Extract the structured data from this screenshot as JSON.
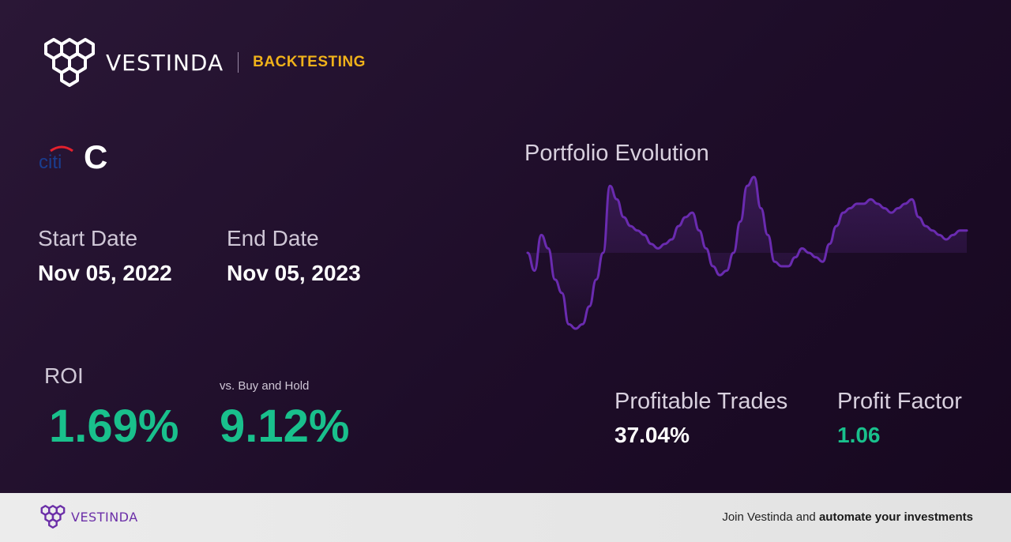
{
  "brand": {
    "name": "VESTINDA",
    "tag": "BACKTESTING",
    "tag_color": "#f0b21a"
  },
  "ticker": {
    "logo": "citi-logo",
    "logo_text": "citi",
    "symbol": "C"
  },
  "dates": {
    "start_label": "Start Date",
    "start_value": "Nov 05, 2022",
    "end_label": "End Date",
    "end_value": "Nov 05, 2023"
  },
  "roi": {
    "label": "ROI",
    "value": "1.69%",
    "bh_label": "vs. Buy and Hold",
    "bh_value": "9.12%",
    "color": "#19c08c"
  },
  "chart_data": {
    "type": "line",
    "title": "Portfolio Evolution",
    "xlabel": "",
    "ylabel": "",
    "grid": false,
    "axes_visible": false,
    "series_color": "#6a2bb0",
    "values": [
      60,
      56,
      64,
      61,
      54,
      51,
      44,
      43,
      44,
      48,
      54,
      60,
      75,
      72,
      68,
      66,
      65,
      64,
      62,
      61,
      62,
      63,
      66,
      68,
      69,
      65,
      61,
      57,
      55,
      56,
      60,
      67,
      75,
      77,
      70,
      64,
      58,
      57,
      57,
      59,
      61,
      60,
      59,
      58,
      62,
      66,
      69,
      70,
      71,
      71,
      72,
      71,
      70,
      69,
      70,
      71,
      72,
      68,
      66,
      65,
      64,
      63,
      64,
      65,
      65
    ]
  },
  "stats": {
    "profitable_label": "Profitable Trades",
    "profitable_value": "37.04%",
    "profitable_color": "#ffffff",
    "factor_label": "Profit Factor",
    "factor_value": "1.06",
    "factor_color": "#19c08c"
  },
  "footer": {
    "brand": "VESTINDA",
    "cta_prefix": "Join Vestinda and ",
    "cta_bold": "automate your investments"
  }
}
